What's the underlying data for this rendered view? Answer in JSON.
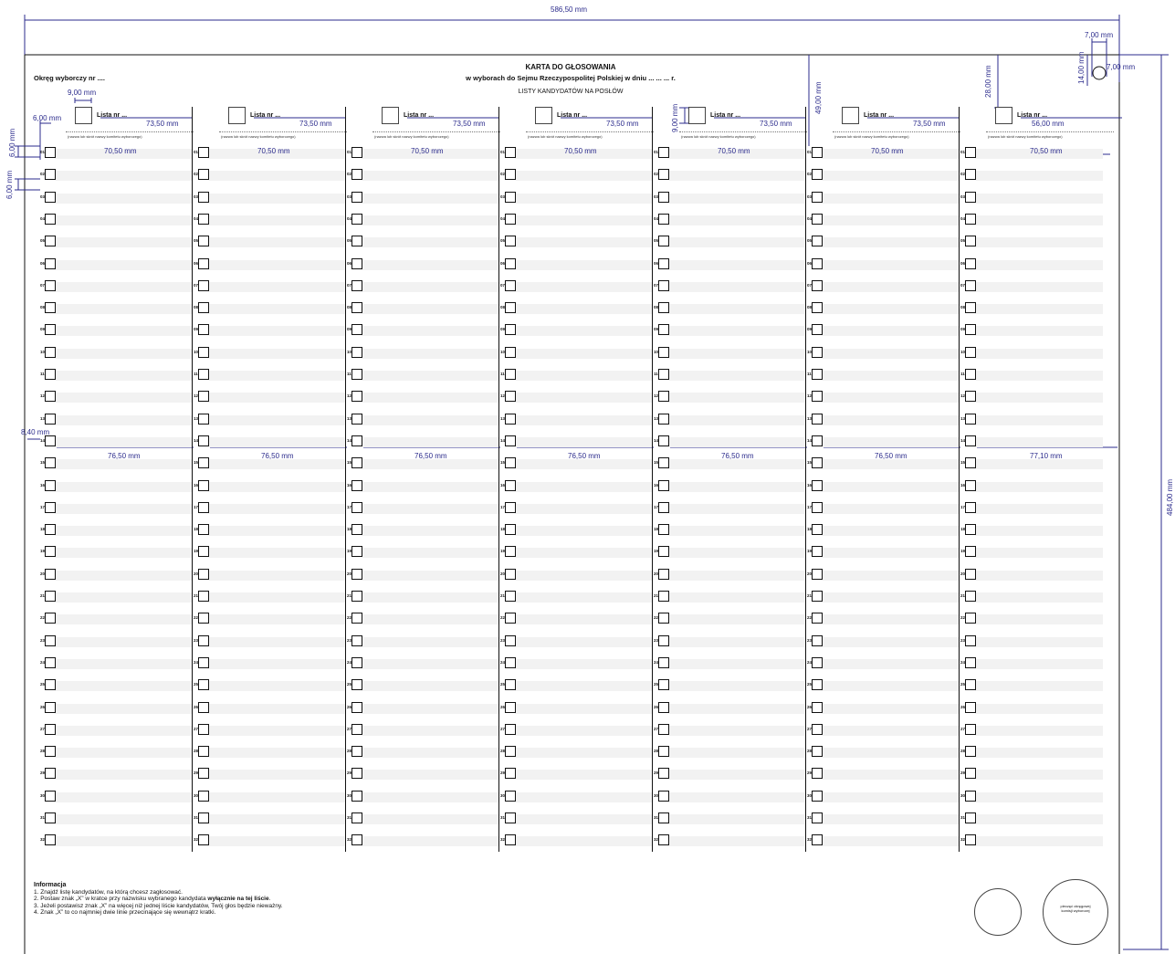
{
  "dimensions": {
    "overall_width": "586,50 mm",
    "overall_height": "484,00 mm",
    "hole_width": "7,00 mm",
    "hole_offset": "7,00 mm",
    "hole_height": "14,00 mm",
    "top_header": "49,00 mm",
    "right_header": "28,00 mm",
    "lista_box": "9,00 mm",
    "lista_box_h": "9,00 mm",
    "left_margin": "6,00 mm",
    "row_height": "6,00 mm",
    "row_gap": "6,00 mm",
    "row_offset": "8,40 mm",
    "lista_width": "73,50 mm",
    "lista_width_last": "56,00 mm",
    "column_inner": "70,50 mm",
    "column_full": "76,50 mm",
    "column_full_last": "77,10 mm"
  },
  "ballot": {
    "district": "Okręg wyborczy nr ....",
    "title": "KARTA DO GŁOSOWANIA",
    "subtitle": "w wyborach do Sejmu Rzeczypospolitej Polskiej w dniu ... ... ... r.",
    "lists_heading": "LISTY KANDYDATÓW NA POSŁÓW",
    "list_label": "Lista nr ...",
    "committee_note": "(nazwa lub skrót nazwy komitetu wyborczego)",
    "row_numbers": [
      "01",
      "02",
      "03",
      "04",
      "05",
      "06",
      "07",
      "08",
      "09",
      "10",
      "11",
      "12",
      "13",
      "14",
      "15",
      "16",
      "17",
      "18",
      "19",
      "20",
      "21",
      "22",
      "23",
      "24",
      "25",
      "26",
      "27",
      "28",
      "29",
      "30",
      "31",
      "32"
    ]
  },
  "info": {
    "title": "Informacja",
    "line1": "1. Znajdź listę kandydatów, na którą chcesz zagłosować.",
    "line2_a": "2. Postaw znak „X” w kratce przy nazwisku wybranego kandydata ",
    "line2_b": "wyłącznie na tej liście",
    "line2_c": ".",
    "line3": "3. Jeżeli postawisz znak „X” na więcej niż jednej liście kandydatów, Twój głos będzie nieważny.",
    "line4": "4. Znak „X” to co najmniej dwie linie przecinające się wewnątrz kratki."
  },
  "stamp": {
    "text_line1": "pieczęć okręgowej",
    "text_line2": "komisji wyborczej"
  },
  "colors": {
    "dimension": "#2b2b8c",
    "row_shade": "#f2f2f2",
    "ink": "#111111"
  }
}
